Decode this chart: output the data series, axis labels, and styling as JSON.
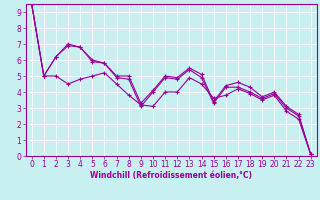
{
  "xlabel": "Windchill (Refroidissement éolien,°C)",
  "bg_color": "#c8f0f0",
  "line_color": "#990099",
  "grid_color": "#ffffff",
  "xlim": [
    -0.5,
    23.5
  ],
  "ylim": [
    0,
    9.5
  ],
  "xticks": [
    0,
    1,
    2,
    3,
    4,
    5,
    6,
    7,
    8,
    9,
    10,
    11,
    12,
    13,
    14,
    15,
    16,
    17,
    18,
    19,
    20,
    21,
    22,
    23
  ],
  "yticks": [
    0,
    1,
    2,
    3,
    4,
    5,
    6,
    7,
    8,
    9
  ],
  "line1_x": [
    0,
    1,
    2,
    3,
    4,
    5,
    6,
    7,
    8,
    9,
    10,
    11,
    12,
    13,
    14,
    15,
    16,
    17,
    18,
    19,
    20,
    21,
    22,
    23
  ],
  "line1_y": [
    9.5,
    5.0,
    6.2,
    6.9,
    6.8,
    5.9,
    5.8,
    4.9,
    4.8,
    3.1,
    4.0,
    4.9,
    4.8,
    5.4,
    4.9,
    3.3,
    4.3,
    4.3,
    4.0,
    3.6,
    3.9,
    3.0,
    2.5,
    0.1
  ],
  "line2_x": [
    0,
    1,
    2,
    3,
    4,
    5,
    6,
    7,
    8,
    9,
    10,
    11,
    12,
    13,
    14,
    15,
    16,
    17,
    18,
    19,
    20,
    21,
    22,
    23
  ],
  "line2_y": [
    9.5,
    5.0,
    6.2,
    7.0,
    6.8,
    6.0,
    5.8,
    5.0,
    5.0,
    3.3,
    4.1,
    5.0,
    4.9,
    5.5,
    5.1,
    3.4,
    4.4,
    4.6,
    4.3,
    3.7,
    4.0,
    3.1,
    2.6,
    0.1
  ],
  "line3_x": [
    0,
    1,
    2,
    3,
    4,
    5,
    6,
    7,
    8,
    9,
    10,
    11,
    12,
    13,
    14,
    15,
    16,
    17,
    18,
    19,
    20,
    21,
    22,
    23
  ],
  "line3_y": [
    9.5,
    5.0,
    5.0,
    4.5,
    4.8,
    5.0,
    5.2,
    4.5,
    3.8,
    3.2,
    3.1,
    4.0,
    4.0,
    4.9,
    4.5,
    3.6,
    3.8,
    4.2,
    3.9,
    3.5,
    3.8,
    2.8,
    2.3,
    0.1
  ],
  "tick_fontsize": 5.5,
  "xlabel_fontsize": 5.5
}
